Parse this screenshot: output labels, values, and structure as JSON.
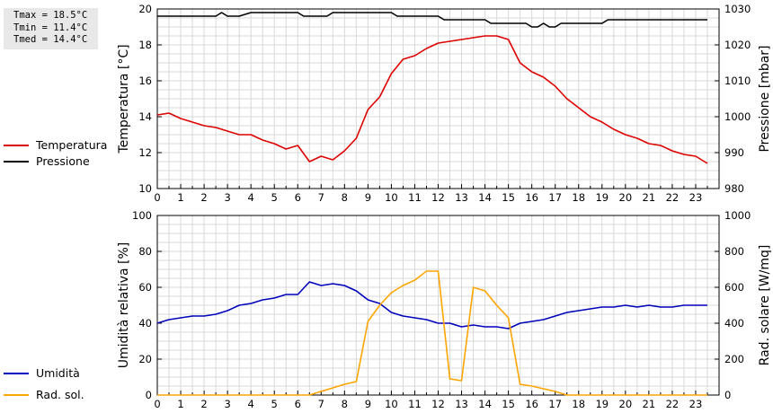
{
  "stats": {
    "tmax": "Tmax = 18.5°C",
    "tmin": "Tmin = 11.4°C",
    "tmed": "Tmed = 14.4°C"
  },
  "legend": {
    "top": [
      {
        "label": "Temperatura",
        "color": "#dd0000"
      },
      {
        "label": "Pressione",
        "color": "#000000"
      }
    ],
    "bottom": [
      {
        "label": "Umidità",
        "color": "#0000bb"
      },
      {
        "label": "Rad. sol.",
        "color": "#ffa500"
      }
    ]
  },
  "chart_data": [
    {
      "type": "line",
      "ylabel": "Temperatura [°C]",
      "y2label": "Pressione [mbar]",
      "xlim": [
        0,
        24
      ],
      "ylim": [
        10,
        20
      ],
      "y2lim": [
        980,
        1030
      ],
      "xticks": [
        "0",
        "1",
        "2",
        "3",
        "4",
        "5",
        "6",
        "7",
        "8",
        "9",
        "10",
        "11",
        "12",
        "13",
        "14",
        "15",
        "16",
        "17",
        "18",
        "19",
        "20",
        "21",
        "22",
        "23"
      ],
      "yticks": [
        "10",
        "12",
        "14",
        "16",
        "18",
        "20"
      ],
      "y2ticks": [
        "980",
        "990",
        "1000",
        "1010",
        "1020",
        "1030"
      ],
      "grid": true,
      "series": [
        {
          "name": "Temperatura",
          "axis": "left",
          "color": "#dd0000",
          "x": [
            0,
            0.5,
            1,
            1.5,
            2,
            2.5,
            3,
            3.5,
            4,
            4.5,
            5,
            5.5,
            6,
            6.5,
            7,
            7.5,
            8,
            8.5,
            9,
            9.5,
            10,
            10.5,
            11,
            11.5,
            12,
            12.5,
            13,
            13.5,
            14,
            14.5,
            15,
            15.5,
            16,
            16.5,
            17,
            17.5,
            18,
            18.5,
            19,
            19.5,
            20,
            20.5,
            21,
            21.5,
            22,
            22.5,
            23,
            23.5
          ],
          "y": [
            14.1,
            14.2,
            13.9,
            13.7,
            13.5,
            13.4,
            13.2,
            13.0,
            13.0,
            12.7,
            12.5,
            12.2,
            12.4,
            11.5,
            11.8,
            11.6,
            12.1,
            12.8,
            14.4,
            15.1,
            16.4,
            17.2,
            17.4,
            17.8,
            18.1,
            18.2,
            18.3,
            18.4,
            18.5,
            18.5,
            18.3,
            17.0,
            16.5,
            16.2,
            15.7,
            15.0,
            14.5,
            14.0,
            13.7,
            13.3,
            13.0,
            12.8,
            12.5,
            12.4,
            12.1,
            11.9,
            11.8,
            11.4
          ]
        },
        {
          "name": "Pressione",
          "axis": "right",
          "color": "#000000",
          "x": [
            0,
            0.5,
            1,
            1.5,
            2,
            2.5,
            2.75,
            3,
            3.5,
            4,
            4.5,
            5,
            5.5,
            6,
            6.25,
            6.5,
            7,
            7.25,
            7.5,
            8,
            8.5,
            9,
            9.5,
            10,
            10.25,
            10.5,
            11,
            11.5,
            12,
            12.25,
            12.5,
            13,
            13.5,
            14,
            14.25,
            14.5,
            15,
            15.5,
            15.75,
            16,
            16.25,
            16.5,
            16.75,
            17,
            17.25,
            17.5,
            18,
            18.5,
            19,
            19.25,
            19.5,
            20,
            20.5,
            21,
            21.5,
            22,
            22.5,
            23,
            23.5
          ],
          "y": [
            1028,
            1028,
            1028,
            1028,
            1028,
            1028,
            1029,
            1028,
            1028,
            1029,
            1029,
            1029,
            1029,
            1029,
            1028,
            1028,
            1028,
            1028,
            1029,
            1029,
            1029,
            1029,
            1029,
            1029,
            1028,
            1028,
            1028,
            1028,
            1028,
            1027,
            1027,
            1027,
            1027,
            1027,
            1026,
            1026,
            1026,
            1026,
            1026,
            1025,
            1025,
            1026,
            1025,
            1025,
            1026,
            1026,
            1026,
            1026,
            1026,
            1027,
            1027,
            1027,
            1027,
            1027,
            1027,
            1027,
            1027,
            1027,
            1027
          ]
        }
      ]
    },
    {
      "type": "line",
      "ylabel": "Umidità relativa [%]",
      "y2label": "Rad. solare [W/mq]",
      "xlim": [
        0,
        24
      ],
      "ylim": [
        0,
        100
      ],
      "y2lim": [
        0,
        1000
      ],
      "xticks": [
        "0",
        "1",
        "2",
        "3",
        "4",
        "5",
        "6",
        "7",
        "8",
        "9",
        "10",
        "11",
        "12",
        "13",
        "14",
        "15",
        "16",
        "17",
        "18",
        "19",
        "20",
        "21",
        "22",
        "23"
      ],
      "yticks": [
        "0",
        "20",
        "40",
        "60",
        "80",
        "100"
      ],
      "y2ticks": [
        "0",
        "200",
        "400",
        "600",
        "800",
        "1000"
      ],
      "grid": true,
      "series": [
        {
          "name": "Umidità",
          "axis": "left",
          "color": "#0000bb",
          "x": [
            0,
            0.5,
            1,
            1.5,
            2,
            2.5,
            3,
            3.5,
            4,
            4.5,
            5,
            5.5,
            6,
            6.5,
            7,
            7.5,
            8,
            8.5,
            9,
            9.5,
            10,
            10.5,
            11,
            11.5,
            12,
            12.5,
            13,
            13.5,
            14,
            14.5,
            15,
            15.5,
            16,
            16.5,
            17,
            17.5,
            18,
            18.5,
            19,
            19.5,
            20,
            20.5,
            21,
            21.5,
            22,
            22.5,
            23,
            23.5
          ],
          "y": [
            40,
            42,
            43,
            44,
            44,
            45,
            47,
            50,
            51,
            53,
            54,
            56,
            56,
            63,
            61,
            62,
            61,
            58,
            53,
            51,
            46,
            44,
            43,
            42,
            40,
            40,
            38,
            39,
            38,
            38,
            37,
            40,
            41,
            42,
            44,
            46,
            47,
            48,
            49,
            49,
            50,
            49,
            50,
            49,
            49,
            50,
            50,
            50
          ]
        },
        {
          "name": "Rad. sol.",
          "axis": "right",
          "color": "#ffa500",
          "x": [
            0,
            1,
            2,
            3,
            4,
            5,
            6,
            6.5,
            7,
            7.5,
            8,
            8.5,
            9,
            9.5,
            10,
            10.5,
            11,
            11.5,
            12,
            12.5,
            13,
            13.5,
            14,
            14.5,
            15,
            15.5,
            16,
            16.5,
            17,
            17.5,
            18,
            19,
            20,
            21,
            22,
            23,
            23.5
          ],
          "y": [
            0,
            0,
            0,
            0,
            0,
            0,
            0,
            0,
            20,
            40,
            60,
            75,
            410,
            500,
            570,
            610,
            640,
            690,
            690,
            90,
            80,
            600,
            580,
            500,
            430,
            60,
            50,
            35,
            20,
            0,
            0,
            0,
            0,
            0,
            0,
            0,
            0
          ]
        }
      ]
    }
  ]
}
